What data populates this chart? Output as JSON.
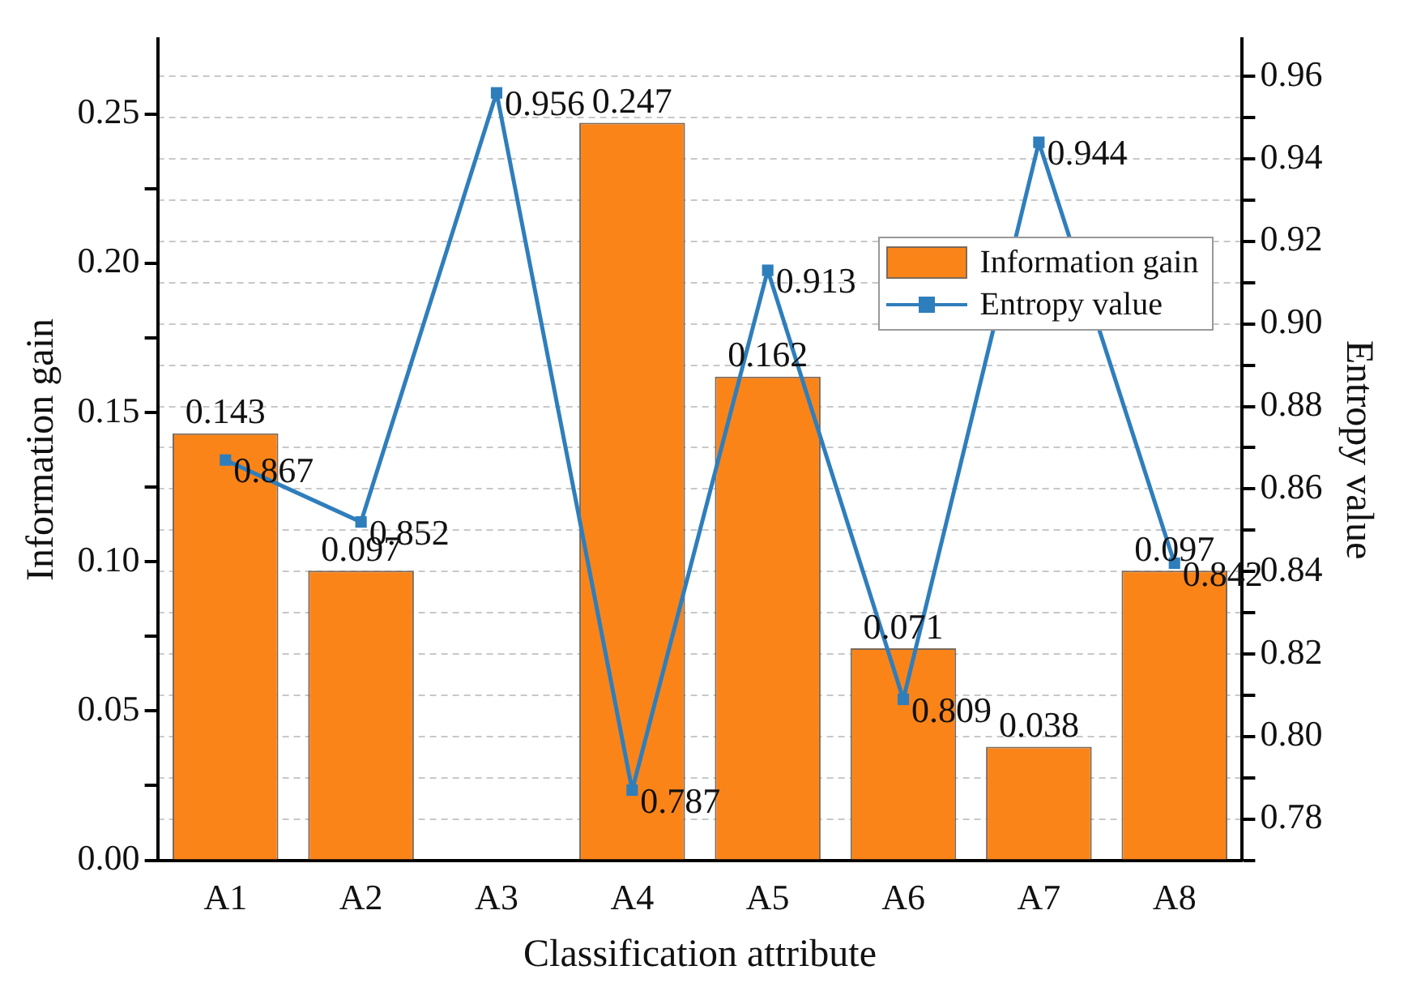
{
  "chart_data": {
    "type": "bar",
    "xlabel": "Classification attribute",
    "ylabel": "Information gain",
    "y2label": "Entropy value",
    "categories": [
      "A1",
      "A2",
      "A3",
      "A4",
      "A5",
      "A6",
      "A7",
      "A8"
    ],
    "series": [
      {
        "name": "Information gain",
        "color": "#fb8419",
        "values": [
          0.143,
          0.097,
          null,
          0.247,
          0.162,
          0.071,
          0.038,
          0.097
        ]
      },
      {
        "name": "Entropy value",
        "type": "line",
        "axis": "y2",
        "color": "#2f7ebc",
        "values": [
          0.867,
          0.852,
          0.956,
          0.787,
          0.913,
          0.809,
          0.944,
          0.842
        ]
      }
    ],
    "ylim": [
      0,
      0.275
    ],
    "yticks": [
      {
        "value": 0,
        "label": "0.00"
      },
      {
        "value": 0.025,
        "label": null
      },
      {
        "value": 0.05,
        "label": "0.05"
      },
      {
        "value": 0.075,
        "label": null
      },
      {
        "value": 0.1,
        "label": "0.10"
      },
      {
        "value": 0.125,
        "label": null
      },
      {
        "value": 0.15,
        "label": "0.15"
      },
      {
        "value": 0.175,
        "label": null
      },
      {
        "value": 0.2,
        "label": "0.20"
      },
      {
        "value": 0.225,
        "label": null
      },
      {
        "value": 0.25,
        "label": "0.25"
      }
    ],
    "y2lim": [
      0.77,
      0.969
    ],
    "y2ticks": [
      {
        "value": 0.77,
        "label": null
      },
      0.78,
      {
        "value": 0.79,
        "label": null
      },
      {
        "value": 0.8,
        "label": "0.80"
      },
      {
        "value": 0.81,
        "label": null
      },
      0.82,
      {
        "value": 0.83,
        "label": null
      },
      0.84,
      {
        "value": 0.85,
        "label": null
      },
      0.86,
      {
        "value": 0.87,
        "label": null
      },
      0.88,
      {
        "value": 0.89,
        "label": null
      },
      {
        "value": 0.9,
        "label": "0.90"
      },
      {
        "value": 0.91,
        "label": null
      },
      0.92,
      {
        "value": 0.93,
        "label": null
      },
      0.94,
      {
        "value": 0.95,
        "label": null
      },
      0.96
    ],
    "grid": "y",
    "legend": "top right",
    "marker": "square",
    "line_style": "solid",
    "data_labels": true
  }
}
